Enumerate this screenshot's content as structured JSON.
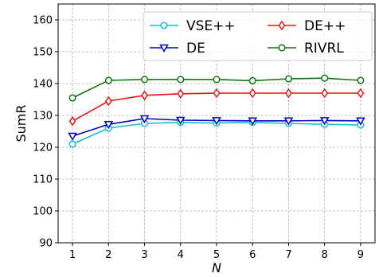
{
  "chart_data": {
    "type": "line",
    "x": [
      1,
      2,
      3,
      4,
      5,
      6,
      7,
      8,
      9
    ],
    "xlabel": "N",
    "ylabel": "SumR",
    "xlim": [
      0.6,
      9.4
    ],
    "ylim": [
      90,
      165
    ],
    "yticks": [
      90,
      100,
      110,
      120,
      130,
      140,
      150,
      160
    ],
    "xticks": [
      1,
      2,
      3,
      4,
      5,
      6,
      7,
      8,
      9
    ],
    "grid": true,
    "legend": {
      "placement": "top-right",
      "columns": 2
    },
    "series": [
      {
        "name": "VSE++",
        "color": "#17becf",
        "marker": "circle",
        "values": [
          121.0,
          126.0,
          127.5,
          127.8,
          127.6,
          127.8,
          127.5,
          127.2,
          127.0
        ]
      },
      {
        "name": "DE++",
        "color": "#ee1111",
        "marker": "diamond",
        "values": [
          128.2,
          134.5,
          136.3,
          136.8,
          137.0,
          137.0,
          137.0,
          137.0,
          137.0
        ]
      },
      {
        "name": "DE",
        "color": "#0000cc",
        "marker": "triangle-down",
        "values": [
          123.5,
          127.2,
          129.0,
          128.5,
          128.4,
          128.3,
          128.3,
          128.4,
          128.3
        ]
      },
      {
        "name": "RIVRL",
        "color": "#117711",
        "marker": "circle",
        "values": [
          135.5,
          141.0,
          141.3,
          141.3,
          141.3,
          140.9,
          141.5,
          141.7,
          141.0
        ]
      }
    ]
  }
}
